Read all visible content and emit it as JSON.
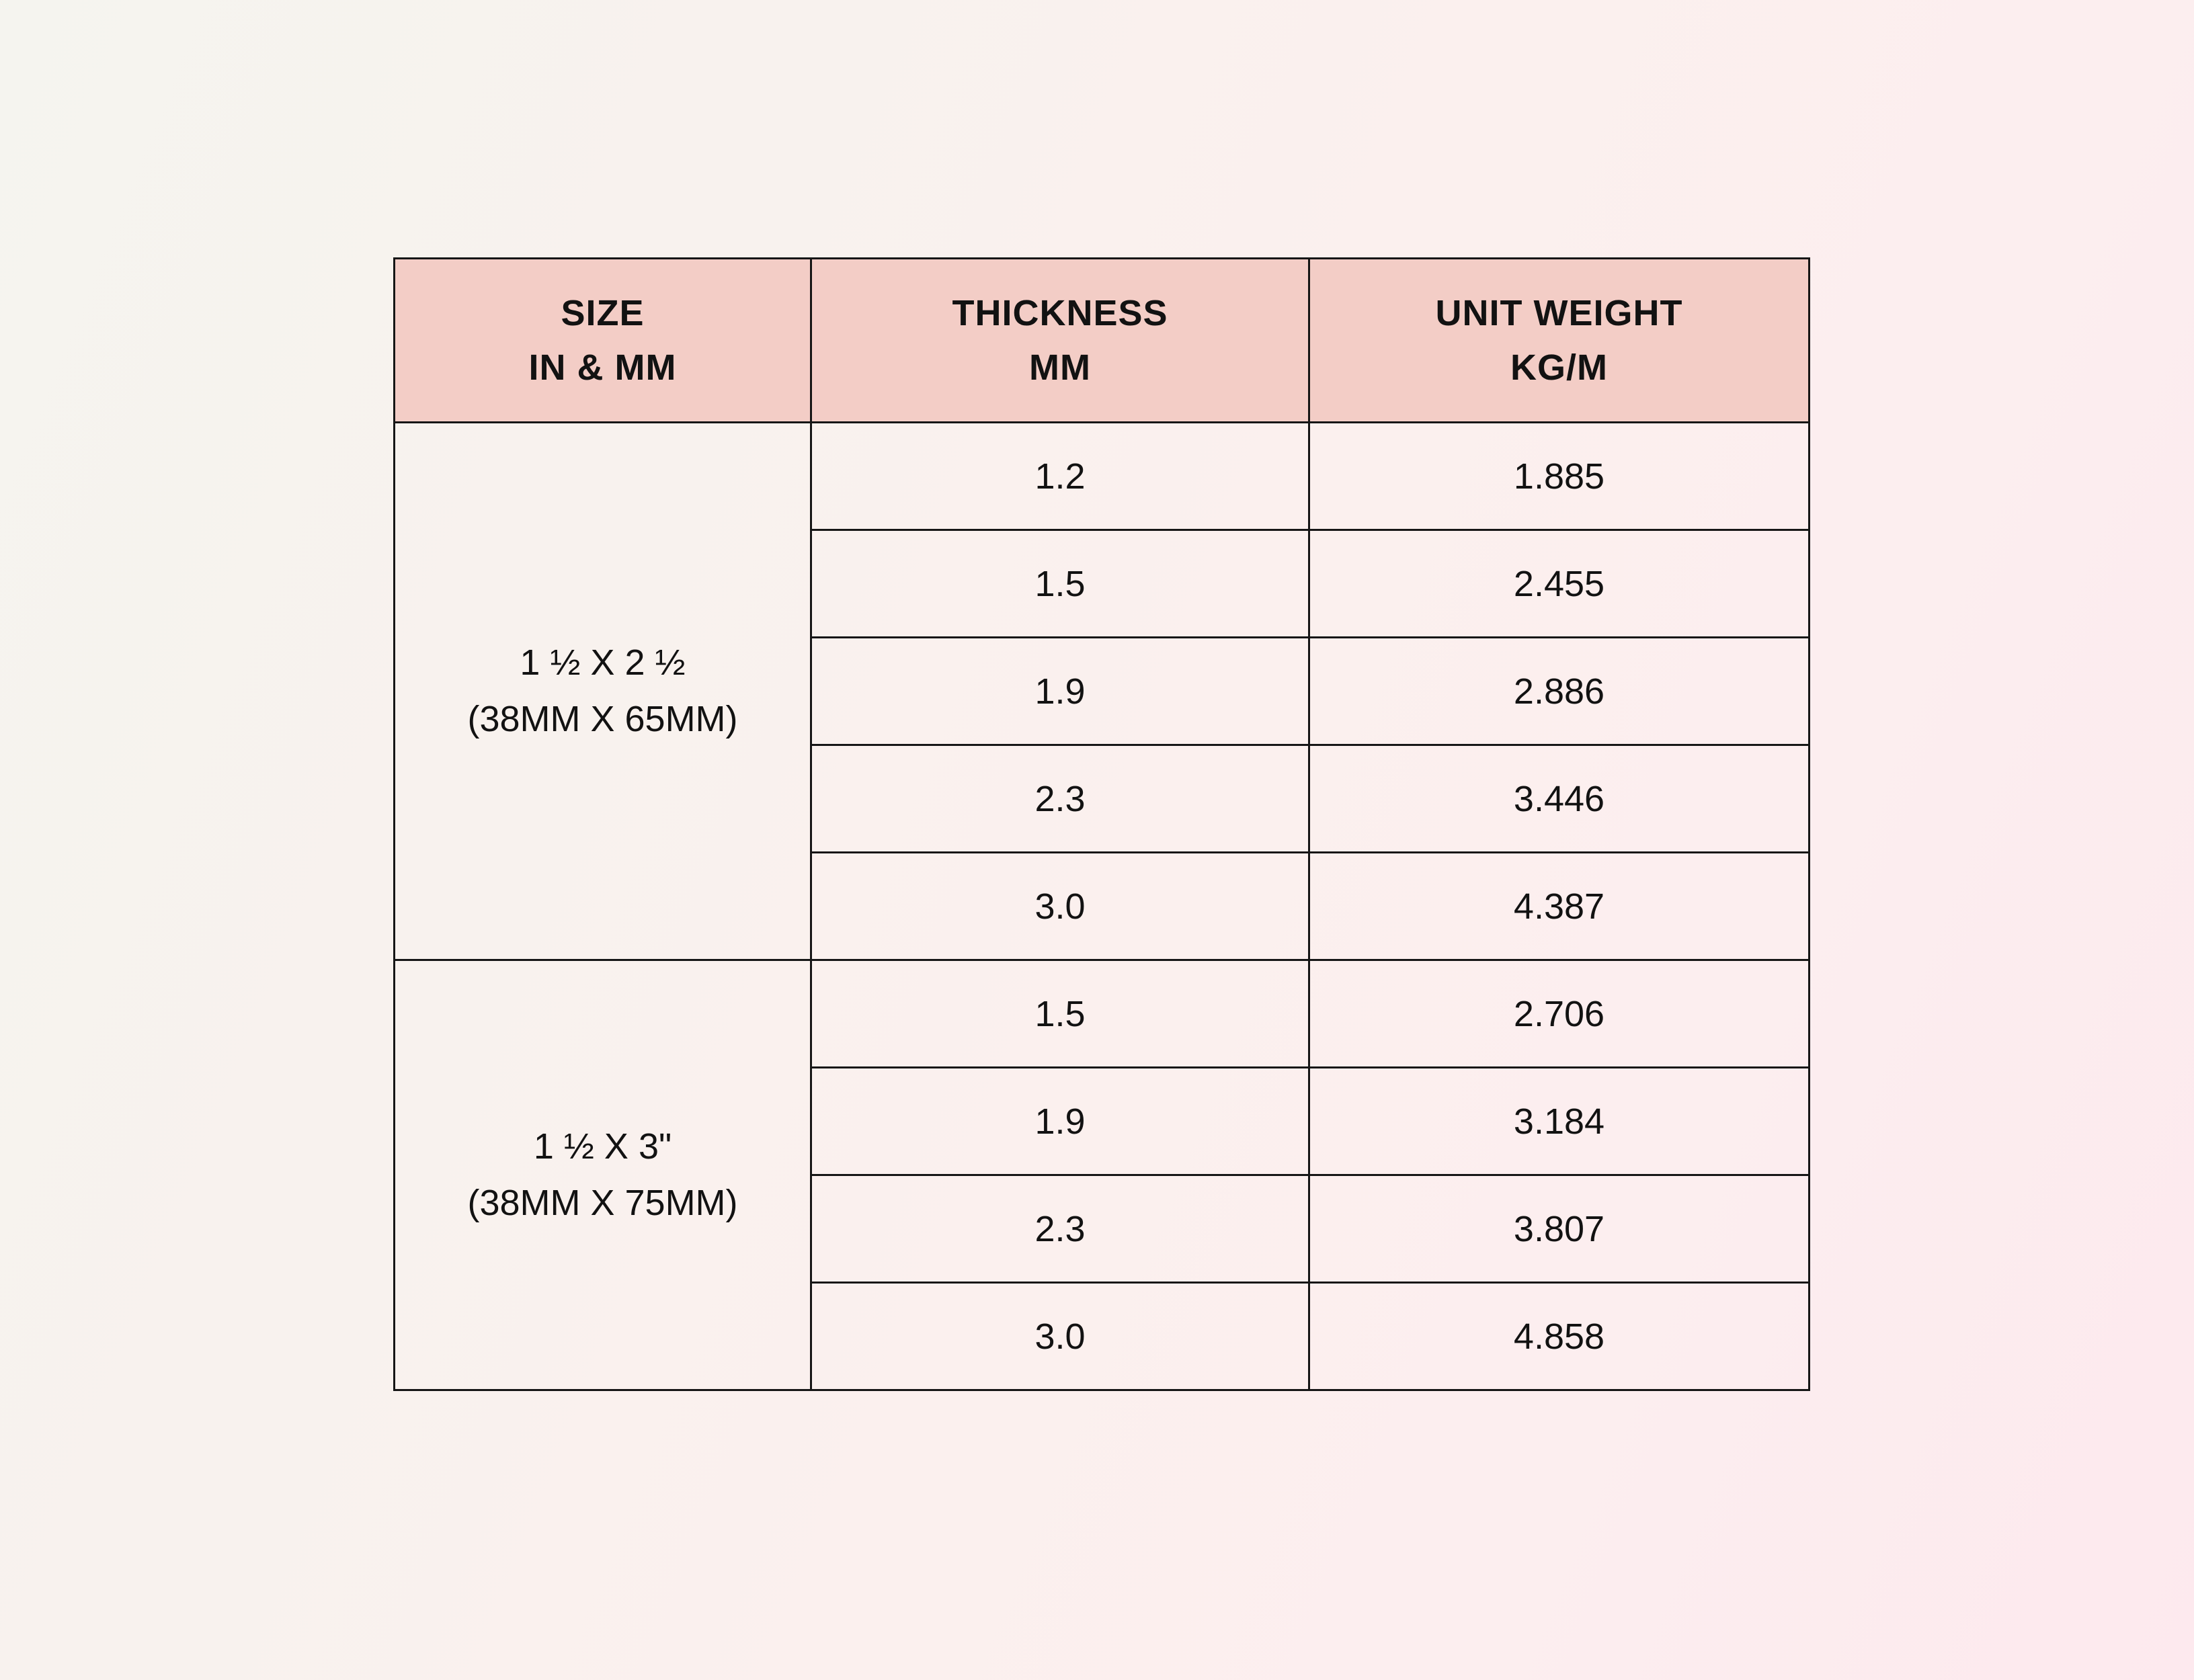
{
  "table": {
    "header": {
      "size": {
        "line1": "SIZE",
        "line2": "IN & MM"
      },
      "thickness": {
        "line1": "THICKNESS",
        "line2": "MM"
      },
      "unit_weight": {
        "line1": "UNIT WEIGHT",
        "line2": "KG/M"
      }
    },
    "groups": [
      {
        "size_line1": "1 ½ X 2 ½",
        "size_line2": "(38MM X 65MM)",
        "rows": [
          {
            "thickness_mm": "1.2",
            "unit_weight_kg_m": "1.885"
          },
          {
            "thickness_mm": "1.5",
            "unit_weight_kg_m": "2.455"
          },
          {
            "thickness_mm": "1.9",
            "unit_weight_kg_m": "2.886"
          },
          {
            "thickness_mm": "2.3",
            "unit_weight_kg_m": "3.446"
          },
          {
            "thickness_mm": "3.0",
            "unit_weight_kg_m": "4.387"
          }
        ]
      },
      {
        "size_line1": "1 ½ X 3\"",
        "size_line2": "(38MM X 75MM)",
        "rows": [
          {
            "thickness_mm": "1.5",
            "unit_weight_kg_m": "2.706"
          },
          {
            "thickness_mm": "1.9",
            "unit_weight_kg_m": "3.184"
          },
          {
            "thickness_mm": "2.3",
            "unit_weight_kg_m": "3.807"
          },
          {
            "thickness_mm": "3.0",
            "unit_weight_kg_m": "4.858"
          }
        ]
      }
    ]
  },
  "colors": {
    "header_bg": "#f3cdc6",
    "border": "#161616",
    "text": "#121212"
  }
}
